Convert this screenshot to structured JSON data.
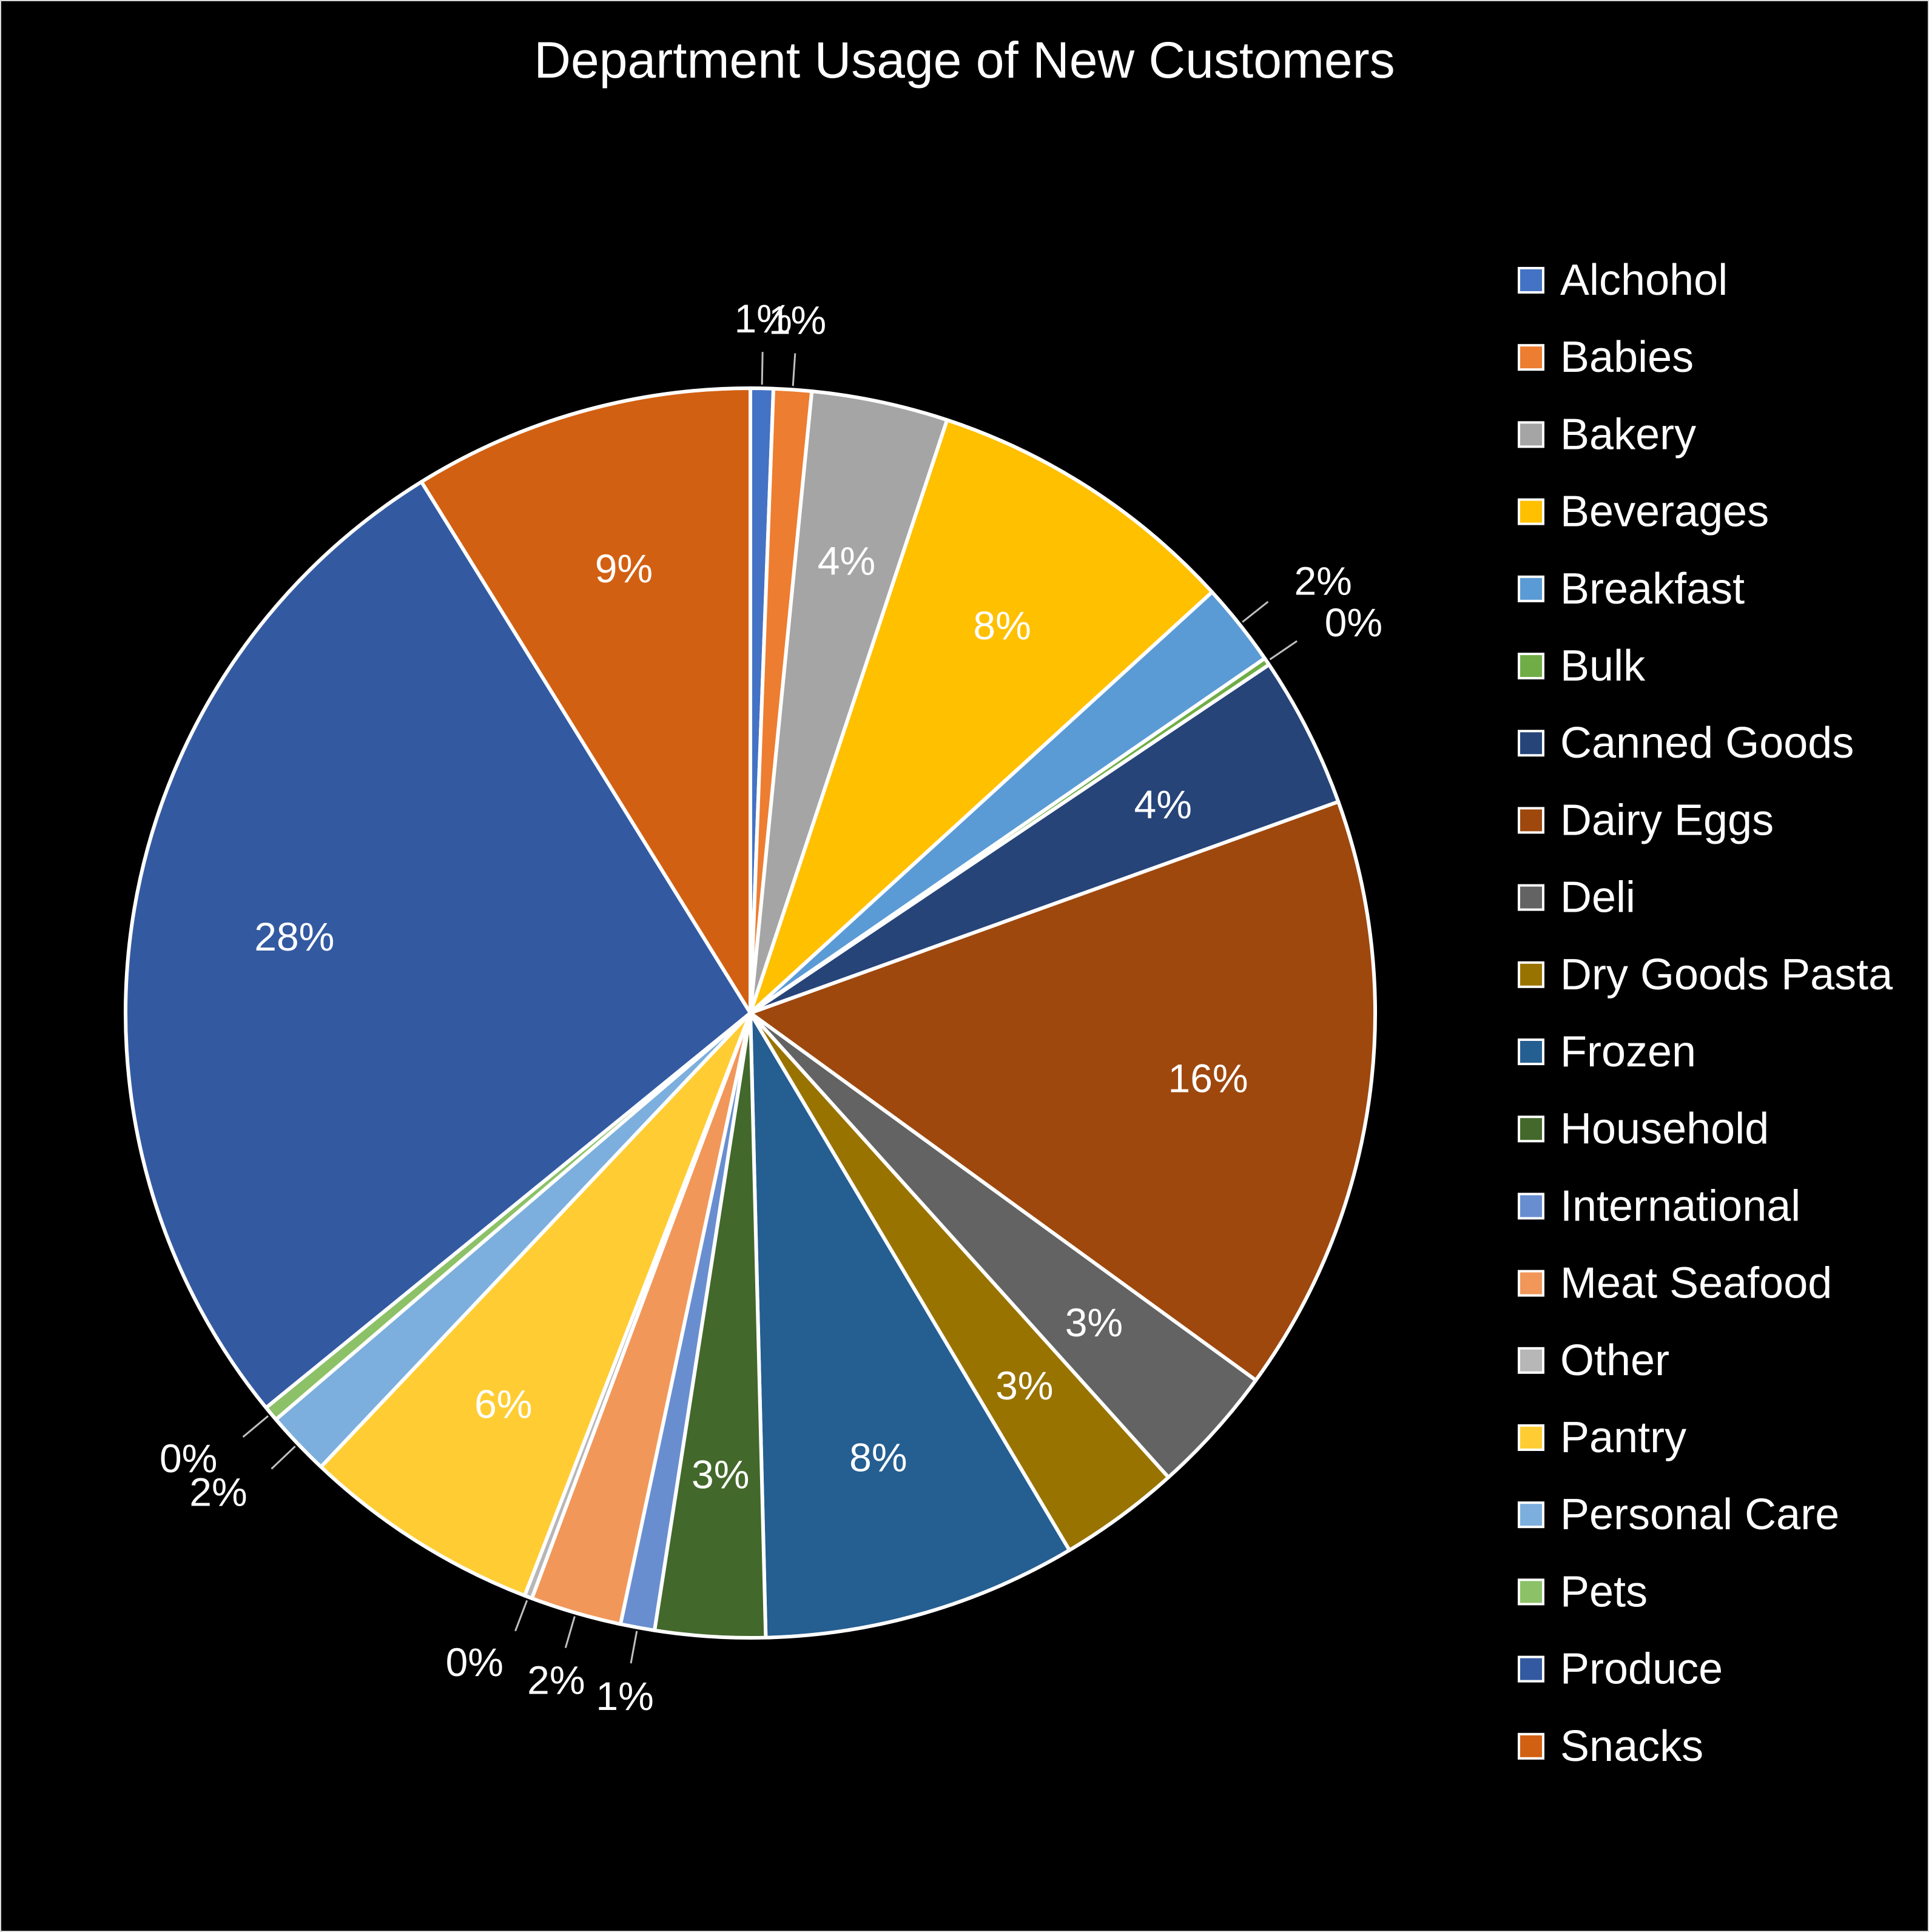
{
  "chart_data": {
    "type": "pie",
    "title": "Department Usage of New Customers",
    "legend_position": "right",
    "categories": [
      "Alchohol",
      "Babies",
      "Bakery",
      "Beverages",
      "Breakfast",
      "Bulk",
      "Canned Goods",
      "Dairy Eggs",
      "Deli",
      "Dry Goods Pasta",
      "Frozen",
      "Household",
      "International",
      "Meat Seafood",
      "Other",
      "Pantry",
      "Personal Care",
      "Pets",
      "Produce",
      "Snacks"
    ],
    "values": [
      0.6,
      1.0,
      3.6,
      8.3,
      2.2,
      0.2,
      4.0,
      15.8,
      3.4,
      3.2,
      8.3,
      2.9,
      0.9,
      2.4,
      0.2,
      6.3,
      1.7,
      0.4,
      27.6,
      9.0
    ],
    "data_labels": [
      "1%",
      "1%",
      "4%",
      "8%",
      "2%",
      "0%",
      "4%",
      "16%",
      "3%",
      "3%",
      "8%",
      "3%",
      "1%",
      "2%",
      "0%",
      "6%",
      "2%",
      "0%",
      "28%",
      "9%"
    ],
    "colors": [
      "#4472C4",
      "#ED7D31",
      "#A5A5A5",
      "#FFC000",
      "#5B9BD5",
      "#70AD47",
      "#264478",
      "#9E480E",
      "#636363",
      "#997300",
      "#255E91",
      "#43682B",
      "#698ED0",
      "#F1975A",
      "#B7B7B7",
      "#FFCD33",
      "#7CAFDD",
      "#8CC168",
      "#335AA1",
      "#D26012"
    ]
  }
}
